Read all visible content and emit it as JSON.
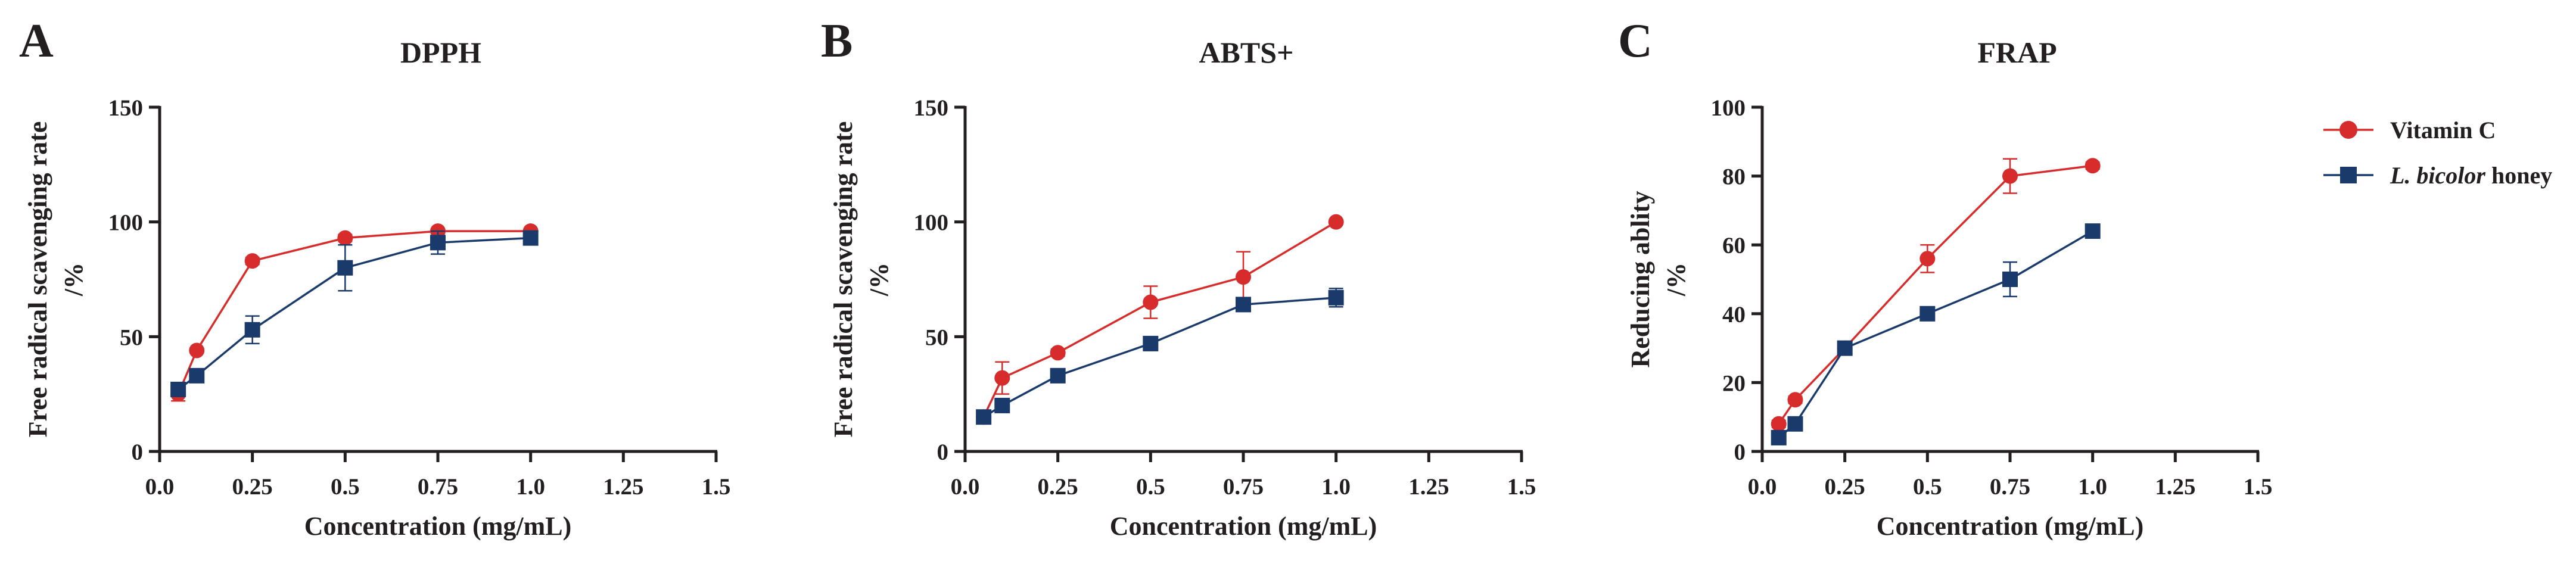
{
  "chart_data": [
    {
      "type": "line",
      "panel": "A",
      "title": "DPPH",
      "xlabel": "Concentration (mg/mL)",
      "ylabel": [
        "Free radical scavenging rate",
        "/%"
      ],
      "xlim": [
        0,
        1.5
      ],
      "ylim": [
        0,
        150
      ],
      "xticks": [
        0.0,
        0.25,
        0.5,
        0.75,
        1.0,
        1.25,
        1.5
      ],
      "xtick_labels": [
        "0.0",
        "0.25",
        "0.5",
        "0.75",
        "1.0",
        "1.25",
        "1.5"
      ],
      "yticks": [
        0,
        50,
        100,
        150
      ],
      "ytick_labels": [
        "0",
        "50",
        "100",
        "150"
      ],
      "series": [
        {
          "name": "Vitamin C",
          "marker": "circle",
          "x": [
            0.05,
            0.1,
            0.25,
            0.5,
            0.75,
            1.0
          ],
          "values": [
            25,
            44,
            83,
            93,
            96,
            96
          ],
          "errors": [
            3,
            1,
            1.5,
            1.5,
            1,
            1
          ]
        },
        {
          "name": "L. bicolor honey",
          "marker": "square",
          "x": [
            0.05,
            0.1,
            0.25,
            0.5,
            0.75,
            1.0
          ],
          "values": [
            27,
            33,
            53,
            80,
            91,
            93
          ],
          "errors": [
            2,
            2,
            6,
            10,
            5,
            2
          ]
        }
      ]
    },
    {
      "type": "line",
      "panel": "B",
      "title": "ABTS+",
      "xlabel": "Concentration (mg/mL)",
      "ylabel": [
        "Free radical scavenging rate",
        "/%"
      ],
      "xlim": [
        0,
        1.5
      ],
      "ylim": [
        0,
        150
      ],
      "xticks": [
        0.0,
        0.25,
        0.5,
        0.75,
        1.0,
        1.25,
        1.5
      ],
      "xtick_labels": [
        "0.0",
        "0.25",
        "0.5",
        "0.75",
        "1.0",
        "1.25",
        "1.5"
      ],
      "yticks": [
        0,
        50,
        100,
        150
      ],
      "ytick_labels": [
        "0",
        "50",
        "100",
        "150"
      ],
      "series": [
        {
          "name": "Vitamin C",
          "marker": "circle",
          "x": [
            0.05,
            0.1,
            0.25,
            0.5,
            0.75,
            1.0
          ],
          "values": [
            15,
            32,
            43,
            65,
            76,
            100
          ],
          "errors": [
            2,
            7,
            1.5,
            7,
            11,
            1
          ]
        },
        {
          "name": "L. bicolor honey",
          "marker": "square",
          "x": [
            0.05,
            0.1,
            0.25,
            0.5,
            0.75,
            1.0
          ],
          "values": [
            15,
            20,
            33,
            47,
            64,
            67
          ],
          "errors": [
            2,
            2,
            2,
            3,
            2,
            4
          ]
        }
      ]
    },
    {
      "type": "line",
      "panel": "C",
      "title": "FRAP",
      "xlabel": "Concentration (mg/mL)",
      "ylabel": [
        "Reducing ablity",
        "/%"
      ],
      "xlim": [
        0,
        1.5
      ],
      "ylim": [
        0,
        100
      ],
      "xticks": [
        0.0,
        0.25,
        0.5,
        0.75,
        1.0,
        1.25,
        1.5
      ],
      "xtick_labels": [
        "0.0",
        "0.25",
        "0.5",
        "0.75",
        "1.0",
        "1.25",
        "1.5"
      ],
      "yticks": [
        0,
        20,
        40,
        60,
        80,
        100
      ],
      "ytick_labels": [
        "0",
        "20",
        "40",
        "60",
        "80",
        "100"
      ],
      "series": [
        {
          "name": "Vitamin C",
          "marker": "circle",
          "x": [
            0.05,
            0.1,
            0.25,
            0.5,
            0.75,
            1.0
          ],
          "values": [
            8,
            15,
            30,
            56,
            80,
            83
          ],
          "errors": [
            1,
            1,
            1.5,
            4,
            5,
            1
          ]
        },
        {
          "name": "L. bicolor honey",
          "marker": "square",
          "x": [
            0.05,
            0.1,
            0.25,
            0.5,
            0.75,
            1.0
          ],
          "values": [
            4,
            8,
            30,
            40,
            50,
            64
          ],
          "errors": [
            1,
            1,
            1,
            1,
            5,
            1
          ]
        }
      ]
    }
  ],
  "legend": {
    "placement": "right",
    "entries": [
      {
        "label": "Vitamin C",
        "marker": "circle",
        "color": "#d62c2c"
      },
      {
        "label_italic": "L. bicolor",
        "label_rest": " honey",
        "marker": "square",
        "color": "#1a3a6b"
      }
    ]
  },
  "colors": {
    "series": [
      "#d62c2c",
      "#1a3a6b"
    ],
    "axis": "#231f20"
  }
}
